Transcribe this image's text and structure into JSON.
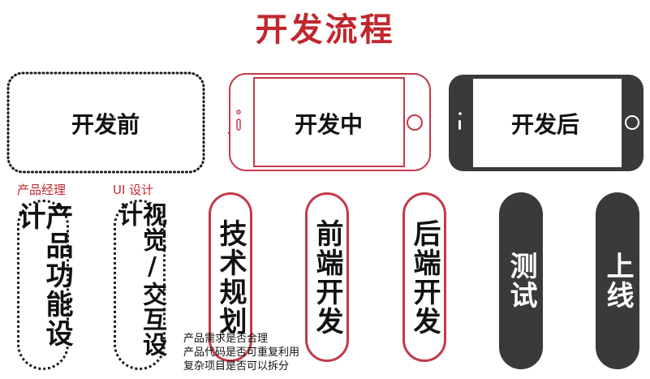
{
  "title": "开发流程",
  "phases": [
    "开发前",
    "开发中",
    "开发后"
  ],
  "roles": [
    "产品经理",
    "UI 设计"
  ],
  "tasks": [
    {
      "label": "产品功能设计",
      "style": "dotted"
    },
    {
      "label": "视觉/交互设计",
      "style": "dotted"
    },
    {
      "label": "技术规划",
      "style": "outline"
    },
    {
      "label": "前端开发",
      "style": "outline"
    },
    {
      "label": "后端开发",
      "style": "outline"
    },
    {
      "label": "测试",
      "style": "filled"
    },
    {
      "label": "上线",
      "style": "filled"
    }
  ],
  "notes": [
    "产品需求是否合理",
    "产品代码是否可重复利用",
    "复杂项目是否可以拆分"
  ],
  "colors": {
    "accent": "#c1272d",
    "outline": "#c23a4a",
    "dark": "#3a3a3a"
  }
}
